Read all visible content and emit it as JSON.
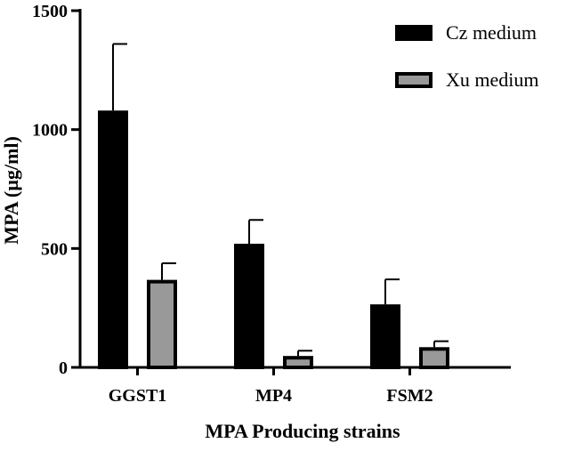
{
  "chart_data": {
    "type": "bar",
    "title": "",
    "xlabel": "MPA Producing strains",
    "ylabel": "MPA (µg/ml)",
    "ylim": [
      0,
      1500
    ],
    "yticks": [
      0,
      500,
      1000,
      1500
    ],
    "categories": [
      "GGST1",
      "MP4",
      "FSM2"
    ],
    "series": [
      {
        "name": "Cz medium",
        "color": "#000000",
        "values": [
          1080,
          520,
          265
        ],
        "errors": [
          280,
          100,
          105
        ]
      },
      {
        "name": "Xu medium",
        "color": "#999999",
        "values": [
          368,
          48,
          85
        ],
        "errors": [
          70,
          22,
          25
        ]
      }
    ],
    "grid": false,
    "legend_position": "top-right"
  }
}
